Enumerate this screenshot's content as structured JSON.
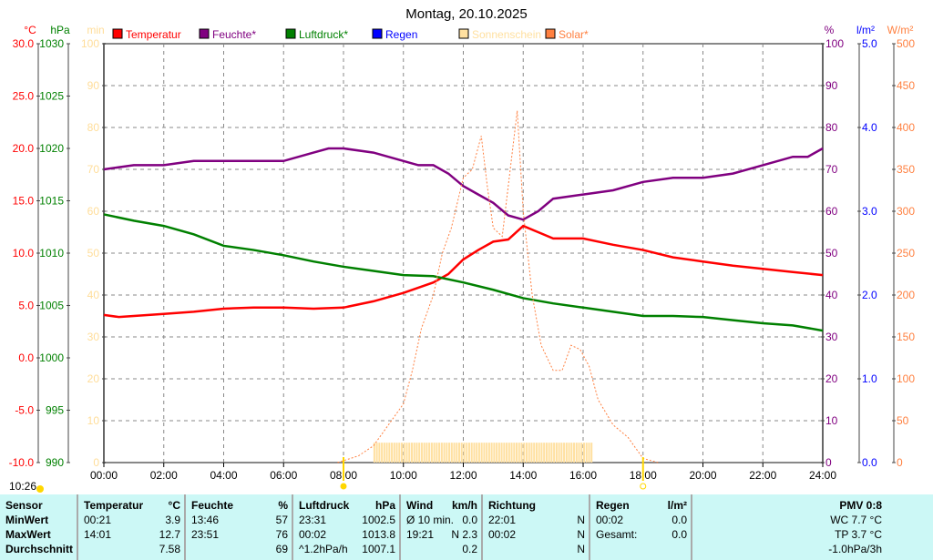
{
  "chart_data": {
    "type": "line",
    "title": "Montag, 20.10.2025",
    "x_ticks": [
      "00:00",
      "02:00",
      "04:00",
      "06:00",
      "08:00",
      "10:00",
      "12:00",
      "14:00",
      "16:00",
      "18:00",
      "20:00",
      "22:00",
      "24:00"
    ],
    "axes": {
      "temp": {
        "unit": "°C",
        "color": "#ff0000",
        "range": [
          -10,
          30
        ],
        "ticks": [
          "30.0",
          "25.0",
          "20.0",
          "15.0",
          "10.0",
          "5.0",
          "0.0",
          "-5.0",
          "-10.0"
        ]
      },
      "press": {
        "unit": "hPa",
        "color": "#008000",
        "range": [
          990,
          1030
        ],
        "ticks": [
          "1030",
          "1025",
          "1020",
          "1015",
          "1010",
          "1005",
          "1000",
          "995",
          "990"
        ]
      },
      "min": {
        "unit": "min",
        "color": "#ffdd99",
        "range": [
          0,
          100
        ],
        "ticks": [
          "100",
          "90",
          "80",
          "70",
          "60",
          "50",
          "40",
          "30",
          "20",
          "10",
          "0"
        ]
      },
      "hum": {
        "unit": "%",
        "color": "#800080",
        "range": [
          0,
          100
        ],
        "ticks": [
          "100",
          "90",
          "80",
          "70",
          "60",
          "50",
          "40",
          "30",
          "20",
          "10",
          "0"
        ]
      },
      "rain": {
        "unit": "l/m²",
        "color": "#0000ff",
        "range": [
          0,
          5
        ],
        "ticks": [
          "5.0",
          "4.0",
          "3.0",
          "2.0",
          "1.0",
          "0.0"
        ]
      },
      "solar": {
        "unit": "W/m²",
        "color": "#ff8040",
        "range": [
          0,
          500
        ],
        "ticks": [
          "500",
          "450",
          "400",
          "350",
          "300",
          "250",
          "200",
          "150",
          "100",
          "50",
          "0"
        ]
      }
    },
    "legend": [
      {
        "label": "Temperatur",
        "color": "#ff0000",
        "text_color": "#ff0000"
      },
      {
        "label": "Feuchte*",
        "color": "#800080",
        "text_color": "#800080"
      },
      {
        "label": "Luftdruck*",
        "color": "#008000",
        "text_color": "#008000"
      },
      {
        "label": "Regen",
        "color": "#0000ff",
        "text_color": "#0000ff"
      },
      {
        "label": "Sonnenschein",
        "color": "#ffe0a0",
        "text_color": "#ffe0a0"
      },
      {
        "label": "Solar*",
        "color": "#ff8040",
        "text_color": "#ff8040"
      }
    ],
    "series": [
      {
        "name": "Temperatur",
        "axis": "temp",
        "x": [
          0,
          0.5,
          1,
          2,
          3,
          4,
          5,
          6,
          7,
          8,
          9,
          10,
          10.5,
          11,
          11.5,
          12,
          12.5,
          13,
          13.5,
          14,
          14.5,
          15,
          16,
          17,
          18,
          19,
          20,
          21,
          22,
          23,
          24
        ],
        "y": [
          4.1,
          3.9,
          4.0,
          4.2,
          4.4,
          4.7,
          4.8,
          4.8,
          4.7,
          4.8,
          5.4,
          6.2,
          6.7,
          7.2,
          8.0,
          9.4,
          10.3,
          11.1,
          11.3,
          12.6,
          12.0,
          11.4,
          11.4,
          10.8,
          10.3,
          9.6,
          9.2,
          8.8,
          8.5,
          8.2,
          7.9
        ]
      },
      {
        "name": "Feuchte*",
        "axis": "hum",
        "x": [
          0,
          1,
          2,
          3,
          4,
          5,
          6,
          7,
          7.5,
          8,
          9,
          10,
          10.5,
          11,
          11.5,
          12,
          12.5,
          13,
          13.5,
          14,
          14.5,
          15,
          16,
          17,
          18,
          19,
          20,
          21,
          22,
          23,
          23.5,
          24
        ],
        "y": [
          70,
          71,
          71,
          72,
          72,
          72,
          72,
          74,
          75,
          75,
          74,
          72,
          71,
          71,
          69,
          66,
          64,
          62,
          59,
          58,
          60,
          63,
          64,
          65,
          67,
          68,
          68,
          69,
          71,
          73,
          73,
          75
        ]
      },
      {
        "name": "Luftdruck*",
        "axis": "press",
        "x": [
          0,
          1,
          2,
          3,
          4,
          5,
          6,
          7,
          8,
          9,
          10,
          11,
          12,
          13,
          14,
          15,
          16,
          17,
          18,
          19,
          20,
          21,
          22,
          23,
          24
        ],
        "y": [
          1013.7,
          1013.1,
          1012.6,
          1011.8,
          1010.7,
          1010.3,
          1009.8,
          1009.2,
          1008.7,
          1008.3,
          1007.9,
          1007.8,
          1007.2,
          1006.5,
          1005.7,
          1005.2,
          1004.8,
          1004.4,
          1004.0,
          1004.0,
          1003.9,
          1003.6,
          1003.3,
          1003.1,
          1002.6
        ]
      },
      {
        "name": "Solar*",
        "axis": "solar",
        "x": [
          7.8,
          8.5,
          9,
          9.5,
          10,
          10.3,
          10.6,
          11,
          11.3,
          11.6,
          12,
          12.3,
          12.6,
          12.8,
          13,
          13.3,
          13.5,
          13.8,
          14,
          14.3,
          14.6,
          15,
          15.3,
          15.6,
          15.9,
          16.2,
          16.5,
          17,
          17.5,
          18,
          18.5
        ],
        "y": [
          0,
          8,
          20,
          45,
          70,
          110,
          160,
          200,
          250,
          280,
          340,
          350,
          390,
          330,
          280,
          270,
          330,
          420,
          300,
          200,
          140,
          110,
          110,
          140,
          135,
          115,
          75,
          45,
          30,
          5,
          0
        ]
      }
    ],
    "sunshine": {
      "from": 9.0,
      "to": 16.33,
      "minutes": 5
    },
    "markers": {
      "sunrise": "08:00",
      "sunset": "18:00"
    }
  },
  "timestamp": "10:26",
  "table": {
    "cols": [
      {
        "rows": [
          [
            "Sensor",
            ""
          ],
          [
            "MinWert",
            ""
          ],
          [
            "MaxWert",
            ""
          ],
          [
            "Durchschnitt",
            ""
          ]
        ],
        "bold": true
      },
      {
        "rows": [
          [
            "Temperatur",
            "°C"
          ],
          [
            "00:21",
            "3.9"
          ],
          [
            "14:01",
            "12.7"
          ],
          [
            "",
            "7.58"
          ]
        ]
      },
      {
        "rows": [
          [
            "Feuchte",
            "%"
          ],
          [
            "13:46",
            "57"
          ],
          [
            "23:51",
            "76"
          ],
          [
            "",
            "69"
          ]
        ]
      },
      {
        "rows": [
          [
            "Luftdruck",
            "hPa"
          ],
          [
            "23:31",
            "1002.5"
          ],
          [
            "00:02",
            "1013.8"
          ],
          [
            "^1.2hPa/h",
            "1007.1"
          ]
        ]
      },
      {
        "rows": [
          [
            "Wind",
            "km/h"
          ],
          [
            "Ø 10 min.",
            "0.0"
          ],
          [
            "19:21",
            "N 2.3"
          ],
          [
            "",
            "0.2"
          ]
        ]
      },
      {
        "rows": [
          [
            "Richtung",
            ""
          ],
          [
            "22:01",
            "N"
          ],
          [
            "00:02",
            "N"
          ],
          [
            "",
            "N"
          ]
        ]
      },
      {
        "rows": [
          [
            "Regen",
            "l/m²"
          ],
          [
            "",
            ""
          ],
          [
            "00:02",
            "0.0"
          ],
          [
            "Gesamt:",
            "0.0"
          ]
        ]
      }
    ],
    "pmv": [
      "PMV 0:8",
      "WC 7.7 °C",
      "TP 3.7 °C",
      "-1.0hPa/3h"
    ]
  }
}
